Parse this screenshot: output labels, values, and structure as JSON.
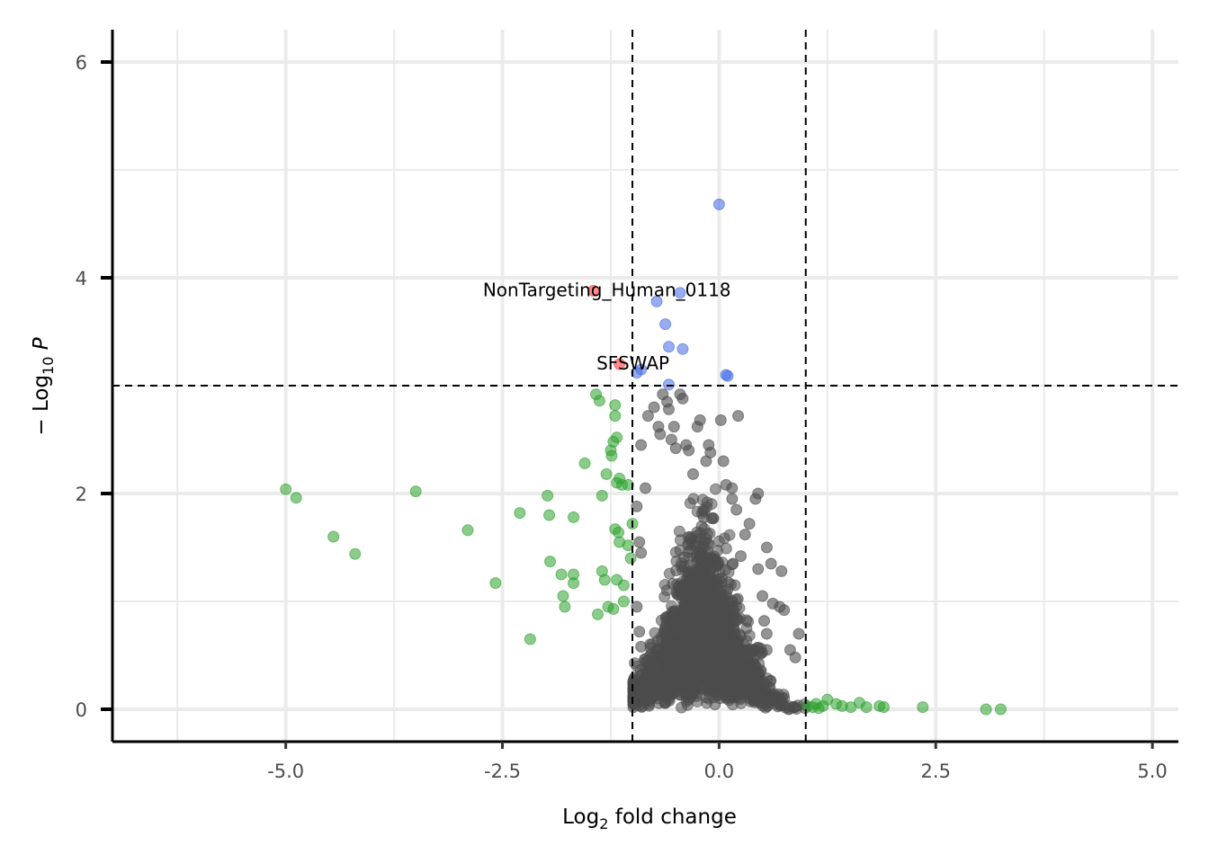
{
  "chart_data": {
    "type": "scatter",
    "title": "",
    "xlabel": {
      "prefix": "Log",
      "sub": "2",
      "suffix": " fold change"
    },
    "ylabel": {
      "prefix": "− Log",
      "sub": "10",
      "suffix": " P"
    },
    "xlim": [
      -7.0,
      5.3
    ],
    "ylim": [
      -0.3,
      6.3
    ],
    "x_ticks": [
      -5.0,
      -2.5,
      0.0,
      2.5,
      5.0
    ],
    "x_tick_labels": [
      "-5.0",
      "-2.5",
      "0.0",
      "2.5",
      "5.0"
    ],
    "y_ticks": [
      0,
      2,
      4,
      6
    ],
    "y_tick_labels": [
      "0",
      "2",
      "4",
      "6"
    ],
    "grid": true,
    "thresholds": {
      "fc": [
        -1.0,
        1.0
      ],
      "p": 3.0
    },
    "colors": {
      "ns": "#4d4d4d",
      "log2fc": "#2ca02c",
      "p": "#4169e1",
      "both": "#ff3030"
    },
    "series": [
      {
        "key": "both",
        "points": [
          [
            -1.45,
            3.88
          ],
          [
            -1.15,
            3.2
          ]
        ]
      },
      {
        "key": "p",
        "points": [
          [
            0.0,
            4.68
          ],
          [
            -0.45,
            3.86
          ],
          [
            -0.72,
            3.78
          ],
          [
            -0.62,
            3.57
          ],
          [
            -0.58,
            3.36
          ],
          [
            -0.42,
            3.34
          ],
          [
            -0.9,
            3.15
          ],
          [
            -0.95,
            3.12
          ],
          [
            0.08,
            3.1
          ],
          [
            0.1,
            3.09
          ],
          [
            -0.58,
            3.01
          ]
        ]
      },
      {
        "key": "log2fc",
        "points": [
          [
            -5.0,
            2.04
          ],
          [
            -4.88,
            1.96
          ],
          [
            -4.45,
            1.6
          ],
          [
            -4.2,
            1.44
          ],
          [
            -3.5,
            2.02
          ],
          [
            -2.9,
            1.66
          ],
          [
            -2.58,
            1.17
          ],
          [
            -2.3,
            1.82
          ],
          [
            -2.18,
            0.65
          ],
          [
            -1.98,
            1.98
          ],
          [
            -1.96,
            1.8
          ],
          [
            -1.95,
            1.37
          ],
          [
            -1.82,
            1.25
          ],
          [
            -1.8,
            1.05
          ],
          [
            -1.78,
            0.95
          ],
          [
            -1.68,
            1.78
          ],
          [
            -1.68,
            1.25
          ],
          [
            -1.68,
            1.17
          ],
          [
            -1.55,
            2.28
          ],
          [
            -1.42,
            2.92
          ],
          [
            -1.38,
            2.86
          ],
          [
            -1.35,
            1.98
          ],
          [
            -1.35,
            1.28
          ],
          [
            -1.32,
            1.2
          ],
          [
            -1.3,
            2.18
          ],
          [
            -1.28,
            0.95
          ],
          [
            -1.25,
            2.4
          ],
          [
            -1.24,
            2.35
          ],
          [
            -1.22,
            2.48
          ],
          [
            -1.2,
            2.82
          ],
          [
            -1.2,
            2.72
          ],
          [
            -1.2,
            1.67
          ],
          [
            -1.18,
            2.52
          ],
          [
            -1.18,
            2.1
          ],
          [
            -1.16,
            1.64
          ],
          [
            -1.15,
            2.14
          ],
          [
            -1.15,
            1.55
          ],
          [
            -1.12,
            2.08
          ],
          [
            -1.1,
            1.15
          ],
          [
            -1.05,
            1.52
          ],
          [
            -1.02,
            1.4
          ],
          [
            -1.0,
            1.72
          ],
          [
            -1.4,
            0.88
          ],
          [
            -1.22,
            0.93
          ],
          [
            -1.18,
            1.2
          ],
          [
            -1.1,
            1.0
          ],
          [
            -1.05,
            2.08
          ],
          [
            1.02,
            0.03
          ],
          [
            1.08,
            0.02
          ],
          [
            1.12,
            0.05
          ],
          [
            1.15,
            0.01
          ],
          [
            1.2,
            0.03
          ],
          [
            1.25,
            0.09
          ],
          [
            1.35,
            0.05
          ],
          [
            1.42,
            0.03
          ],
          [
            1.52,
            0.02
          ],
          [
            1.62,
            0.06
          ],
          [
            1.7,
            0.02
          ],
          [
            1.85,
            0.03
          ],
          [
            1.9,
            0.02
          ],
          [
            2.35,
            0.02
          ],
          [
            3.08,
            0.0
          ],
          [
            3.25,
            0.0
          ]
        ]
      }
    ],
    "ns_cloud": {
      "count": 2200,
      "x_mean": -0.2,
      "x_sd": 0.38,
      "x_min": -0.99,
      "x_max": 0.99
    },
    "ns_points": [
      [
        -0.9,
        2.45
      ],
      [
        -0.85,
        2.05
      ],
      [
        -0.82,
        2.72
      ],
      [
        -0.75,
        2.8
      ],
      [
        -0.7,
        2.62
      ],
      [
        -0.68,
        2.55
      ],
      [
        -0.65,
        2.92
      ],
      [
        -0.6,
        2.85
      ],
      [
        -0.58,
        2.78
      ],
      [
        -0.55,
        2.5
      ],
      [
        -0.52,
        2.62
      ],
      [
        -0.5,
        2.42
      ],
      [
        -0.45,
        2.92
      ],
      [
        -0.42,
        2.88
      ],
      [
        -0.38,
        2.45
      ],
      [
        -0.35,
        2.4
      ],
      [
        -0.3,
        2.18
      ],
      [
        -0.25,
        2.62
      ],
      [
        -0.22,
        2.68
      ],
      [
        -0.15,
        2.3
      ],
      [
        -0.12,
        2.45
      ],
      [
        -0.1,
        2.38
      ],
      [
        0.02,
        2.68
      ],
      [
        0.05,
        2.3
      ],
      [
        0.08,
        2.08
      ],
      [
        0.15,
        2.05
      ],
      [
        0.22,
        2.72
      ],
      [
        0.15,
        1.95
      ],
      [
        0.2,
        1.85
      ],
      [
        0.42,
        1.95
      ],
      [
        0.45,
        2.0
      ],
      [
        0.55,
        1.5
      ],
      [
        0.6,
        1.35
      ],
      [
        0.72,
        1.28
      ],
      [
        0.5,
        1.05
      ],
      [
        0.62,
        0.98
      ],
      [
        0.7,
        0.95
      ],
      [
        0.75,
        0.92
      ],
      [
        0.52,
        0.82
      ],
      [
        0.55,
        0.7
      ],
      [
        0.82,
        0.55
      ],
      [
        0.88,
        0.48
      ],
      [
        0.92,
        0.7
      ],
      [
        0.55,
        0.55
      ],
      [
        0.3,
        1.62
      ],
      [
        0.35,
        1.72
      ],
      [
        -0.9,
        1.45
      ],
      [
        -0.95,
        0.95
      ],
      [
        -0.92,
        0.72
      ],
      [
        -0.9,
        0.58
      ],
      [
        -0.75,
        0.38
      ],
      [
        -0.95,
        1.88
      ],
      [
        -0.92,
        1.55
      ],
      [
        0.25,
        1.42
      ],
      [
        0.45,
        1.3
      ]
    ],
    "labels": [
      {
        "text": "NonTargeting_Human_0118",
        "x": -1.45,
        "y": 3.88
      },
      {
        "text": "SFSWAP",
        "x": -1.15,
        "y": 3.2
      }
    ]
  }
}
